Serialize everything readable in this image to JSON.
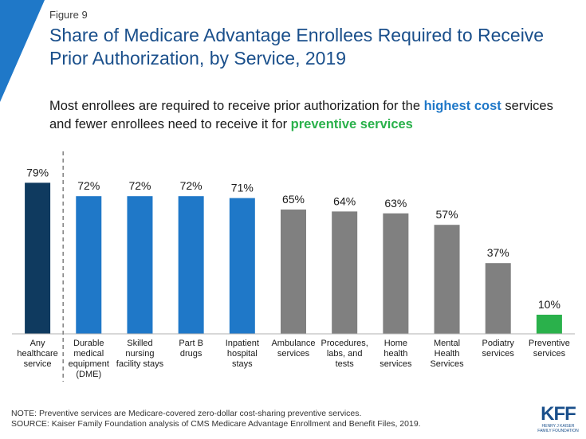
{
  "figure_label": "Figure 9",
  "title": "Share of Medicare Advantage Enrollees Required to Receive Prior Authorization, by Service, 2019",
  "subtitle": {
    "part1": "Most enrollees are required to receive prior authorization for the ",
    "highlight1": "highest cost",
    "part2": " services and fewer enrollees need to receive it for ",
    "highlight2": "preventive services"
  },
  "colors": {
    "dark_navy": "#0f3a5f",
    "blue": "#1f78c8",
    "gray": "#808080",
    "green": "#2ab14b",
    "title": "#1a4f8b"
  },
  "chart_data": {
    "type": "bar",
    "categories": [
      [
        "Any",
        "healthcare",
        "service"
      ],
      [
        "Durable",
        "medical",
        "equipment",
        "(DME)"
      ],
      [
        "Skilled",
        "nursing",
        "facility stays"
      ],
      [
        "Part B",
        "drugs"
      ],
      [
        "Inpatient",
        "hospital",
        "stays"
      ],
      [
        "Ambulance",
        "services"
      ],
      [
        "Procedures,",
        "labs, and",
        "tests"
      ],
      [
        "Home",
        "health",
        "services"
      ],
      [
        "Mental",
        "Health",
        "Services"
      ],
      [
        "Podiatry",
        "services"
      ],
      [
        "Preventive",
        "services"
      ]
    ],
    "values": [
      79,
      72,
      72,
      72,
      71,
      65,
      64,
      63,
      57,
      37,
      10
    ],
    "data_labels": [
      "79%",
      "72%",
      "72%",
      "72%",
      "71%",
      "65%",
      "64%",
      "63%",
      "57%",
      "37%",
      "10%"
    ],
    "bar_colors": [
      "#0f3a5f",
      "#1f78c8",
      "#1f78c8",
      "#1f78c8",
      "#1f78c8",
      "#808080",
      "#808080",
      "#808080",
      "#808080",
      "#808080",
      "#2ab14b"
    ],
    "ylim": [
      0,
      100
    ],
    "grid": false,
    "divider_after_index": 0
  },
  "notes": [
    "NOTE: Preventive services are Medicare-covered zero-dollar cost-sharing preventive services.",
    "SOURCE: Kaiser Family Foundation analysis of CMS Medicare Advantage Enrollment and Benefit Files, 2019."
  ],
  "logo": {
    "mark": "KFF",
    "line1": "HENRY J KAISER",
    "line2": "FAMILY FOUNDATION"
  }
}
